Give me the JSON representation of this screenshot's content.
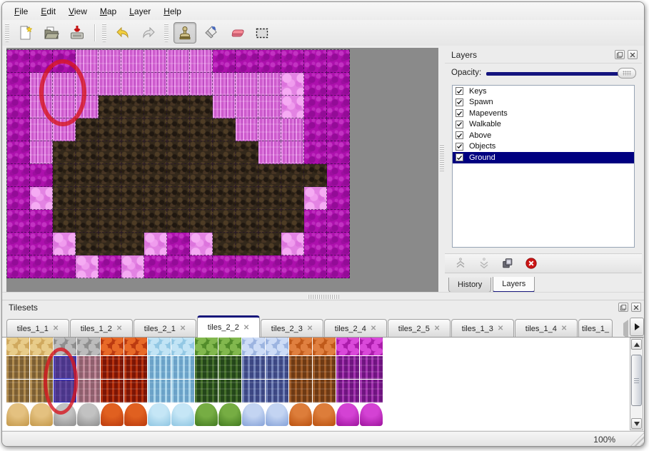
{
  "menu_bar": {
    "items": [
      "File",
      "Edit",
      "View",
      "Map",
      "Layer",
      "Help"
    ]
  },
  "toolbar": {
    "groups": [
      [
        "new-file",
        "open-file",
        "save-file"
      ],
      [
        "undo",
        "redo"
      ],
      [
        "stamp-tool",
        "fill-tool",
        "eraser-tool",
        "rect-select-tool"
      ]
    ],
    "active_tool": "stamp-tool"
  },
  "map_view": {
    "columns": 15,
    "rows": 10,
    "tile_size": 32,
    "tile_legend": {
      "M": "magenta-rock",
      "C": "pink-pillar-rock",
      "P": "bright-pink-rock",
      "D": "dark-brown-rock"
    },
    "tile_colors": {
      "M": "#ad10ad",
      "C": "#d467d4",
      "P": "#e383e3",
      "D": "#33281b"
    },
    "grid": [
      "MMMCCCCCCMMMMMM",
      "MCCCCCCCCCCCPMM",
      "MCCCDDDDDCCCPMM",
      "MCCDDDDDDDCCCMM",
      "MCDDDDDDDDDCCMM",
      "MMDDDDDDDDDDDDM",
      "MPDDDDDDDDDDDPM",
      "MMDDDDDDDDDDDMM",
      "MMPDDDPMPDDDPMM",
      "MMMPMPMMMMMMMMM"
    ],
    "annotation_color": "#d61620"
  },
  "layers_panel": {
    "title": "Layers",
    "opacity_label": "Opacity:",
    "opacity_value": 100,
    "accent_color": "#000080",
    "layers": [
      {
        "label": "Keys",
        "checked": true,
        "selected": false
      },
      {
        "label": "Spawn",
        "checked": true,
        "selected": false
      },
      {
        "label": "Mapevents",
        "checked": true,
        "selected": false
      },
      {
        "label": "Walkable",
        "checked": true,
        "selected": false
      },
      {
        "label": "Above",
        "checked": true,
        "selected": false
      },
      {
        "label": "Objects",
        "checked": true,
        "selected": false
      },
      {
        "label": "Ground",
        "checked": true,
        "selected": true
      }
    ],
    "layer_buttons": [
      {
        "icon": "raise-layer",
        "enabled": false
      },
      {
        "icon": "lower-layer",
        "enabled": false
      },
      {
        "icon": "duplicate-layer",
        "enabled": true
      },
      {
        "icon": "delete-layer",
        "enabled": true
      }
    ],
    "bottom_tabs": [
      {
        "label": "History",
        "active": false
      },
      {
        "label": "Layers",
        "active": true
      }
    ]
  },
  "tilesets_panel": {
    "title": "Tilesets",
    "tabs": [
      {
        "label": "tiles_1_1",
        "active": false,
        "clipped": false
      },
      {
        "label": "tiles_1_2",
        "active": false,
        "clipped": false
      },
      {
        "label": "tiles_2_1",
        "active": false,
        "clipped": false
      },
      {
        "label": "tiles_2_2",
        "active": true,
        "clipped": false
      },
      {
        "label": "tiles_2_3",
        "active": false,
        "clipped": false
      },
      {
        "label": "tiles_2_4",
        "active": false,
        "clipped": false
      },
      {
        "label": "tiles_2_5",
        "active": false,
        "clipped": false
      },
      {
        "label": "tiles_1_3",
        "active": false,
        "clipped": false
      },
      {
        "label": "tiles_1_4",
        "active": false,
        "clipped": false
      },
      {
        "label": "tiles_1_",
        "active": false,
        "clipped": true
      }
    ],
    "close_glyph": "✕",
    "row_variants": [
      "top",
      "pillar",
      "pillar",
      "mound"
    ],
    "groups": [
      {
        "name": "sand",
        "top": {
          "hi": "#e8cc8a",
          "lo": "#d0a95e"
        },
        "pillar": {
          "hi": "#b28d50",
          "lo": "#7c5f33"
        },
        "mound": {
          "hi": "#e4c180",
          "lo": "#c89e52"
        }
      },
      {
        "name": "gray-stone",
        "top": {
          "hi": "#bcbcbc",
          "lo": "#8f8f8f"
        },
        "pillar": {
          "hi": "#c08898",
          "lo": "#8f5f6d"
        },
        "mound": {
          "hi": "#c2c2c2",
          "lo": "#969696"
        }
      },
      {
        "name": "lava",
        "top": {
          "hi": "#e86a28",
          "lo": "#bb3a10"
        },
        "pillar": {
          "hi": "#b8330f",
          "lo": "#7c1505"
        },
        "mound": {
          "hi": "#e06020",
          "lo": "#c04010"
        }
      },
      {
        "name": "ice",
        "top": {
          "hi": "#c2e4f5",
          "lo": "#93c8e4"
        },
        "pillar": {
          "hi": "#a8d4ea",
          "lo": "#6ba2c8"
        },
        "mound": {
          "hi": "#c5e6f6",
          "lo": "#96cae5"
        }
      },
      {
        "name": "vines",
        "top": {
          "hi": "#82b84e",
          "lo": "#528c2a"
        },
        "pillar": {
          "hi": "#46702c",
          "lo": "#24461a"
        },
        "mound": {
          "hi": "#76ad43",
          "lo": "#4a8226"
        }
      },
      {
        "name": "blue-crystal",
        "top": {
          "hi": "#cddcf6",
          "lo": "#9cb4e0"
        },
        "pillar": {
          "hi": "#7382b8",
          "lo": "#3c4784"
        },
        "mound": {
          "hi": "#c3d4f2",
          "lo": "#8ea9dc"
        }
      },
      {
        "name": "orange-bubble",
        "top": {
          "hi": "#e08040",
          "lo": "#c05a1a"
        },
        "pillar": {
          "hi": "#a05c28",
          "lo": "#6e3a14"
        },
        "mound": {
          "hi": "#dd7d3a",
          "lo": "#bf5816"
        }
      },
      {
        "name": "magenta-cells",
        "top": {
          "hi": "#da49da",
          "lo": "#ab1cab"
        },
        "pillar": {
          "hi": "#a435b0",
          "lo": "#6f1480"
        },
        "mound": {
          "hi": "#d442d4",
          "lo": "#a51ba5"
        }
      }
    ],
    "selected_tile": {
      "group_index": 1,
      "group_col": 0,
      "rows": [
        1,
        2
      ]
    },
    "annotation_color": "#d61620"
  },
  "status_bar": {
    "zoom_level": "100%"
  }
}
